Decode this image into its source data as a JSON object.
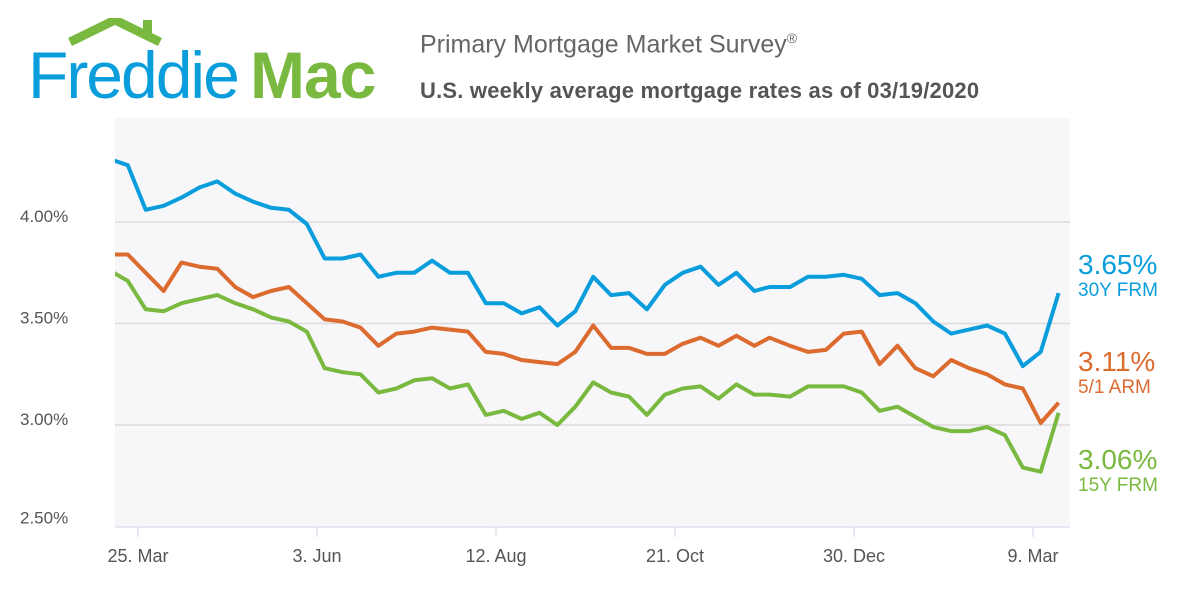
{
  "logo": {
    "text_part1": "Freddie",
    "text_part2": "Mac",
    "colors": {
      "blue": "#0a9ddc",
      "green": "#7ab940"
    }
  },
  "header": {
    "title": "Primary Mortgage Market Survey",
    "title_mark": "®",
    "subtitle": "U.S. weekly average mortgage rates as of 03/19/2020"
  },
  "chart_data": {
    "type": "line",
    "title": "Primary Mortgage Market Survey®",
    "subtitle": "U.S. weekly average mortgage rates as of 03/19/2020",
    "grid": true,
    "ylim": [
      2.5,
      4.5
    ],
    "y_ticks": [
      "2.50%",
      "3.00%",
      "3.50%",
      "4.00%"
    ],
    "y_tick_values": [
      2.5,
      3.0,
      3.5,
      4.0
    ],
    "x_ticks": [
      "25. Mar",
      "3. Jun",
      "12. Aug",
      "21. Oct",
      "30. Dec",
      "9. Mar"
    ],
    "x_tick_dates": [
      "2019-03-25",
      "2019-06-03",
      "2019-08-12",
      "2019-10-21",
      "2019-12-30",
      "2020-03-09"
    ],
    "x": [
      "2019-03-14",
      "2019-03-21",
      "2019-03-28",
      "2019-04-04",
      "2019-04-11",
      "2019-04-18",
      "2019-04-25",
      "2019-05-02",
      "2019-05-09",
      "2019-05-16",
      "2019-05-23",
      "2019-05-30",
      "2019-06-06",
      "2019-06-13",
      "2019-06-20",
      "2019-06-27",
      "2019-07-04",
      "2019-07-11",
      "2019-07-18",
      "2019-07-25",
      "2019-08-01",
      "2019-08-08",
      "2019-08-15",
      "2019-08-22",
      "2019-08-29",
      "2019-09-05",
      "2019-09-12",
      "2019-09-19",
      "2019-09-26",
      "2019-10-03",
      "2019-10-10",
      "2019-10-17",
      "2019-10-24",
      "2019-10-31",
      "2019-11-07",
      "2019-11-14",
      "2019-11-21",
      "2019-11-27",
      "2019-12-05",
      "2019-12-12",
      "2019-12-19",
      "2019-12-26",
      "2020-01-02",
      "2020-01-09",
      "2020-01-16",
      "2020-01-23",
      "2020-01-30",
      "2020-02-06",
      "2020-02-13",
      "2020-02-20",
      "2020-02-27",
      "2020-03-05",
      "2020-03-12",
      "2020-03-19"
    ],
    "series": [
      {
        "name": "30Y FRM",
        "latest": "3.65%",
        "color": "#0a9ddc",
        "values": [
          4.31,
          4.28,
          4.06,
          4.08,
          4.12,
          4.17,
          4.2,
          4.14,
          4.1,
          4.07,
          4.06,
          3.99,
          3.82,
          3.82,
          3.84,
          3.73,
          3.75,
          3.75,
          3.81,
          3.75,
          3.75,
          3.6,
          3.6,
          3.55,
          3.58,
          3.49,
          3.56,
          3.73,
          3.64,
          3.65,
          3.57,
          3.69,
          3.75,
          3.78,
          3.69,
          3.75,
          3.66,
          3.68,
          3.68,
          3.73,
          3.73,
          3.74,
          3.72,
          3.64,
          3.65,
          3.6,
          3.51,
          3.45,
          3.47,
          3.49,
          3.45,
          3.29,
          3.36,
          3.65
        ]
      },
      {
        "name": "5/1 ARM",
        "latest": "3.11%",
        "color": "#dc6b2f",
        "values": [
          3.84,
          3.84,
          3.75,
          3.66,
          3.8,
          3.78,
          3.77,
          3.68,
          3.63,
          3.66,
          3.68,
          3.6,
          3.52,
          3.51,
          3.48,
          3.39,
          3.45,
          3.46,
          3.48,
          3.47,
          3.46,
          3.36,
          3.35,
          3.32,
          3.31,
          3.3,
          3.36,
          3.49,
          3.38,
          3.38,
          3.35,
          3.35,
          3.4,
          3.43,
          3.39,
          3.44,
          3.39,
          3.43,
          3.39,
          3.36,
          3.37,
          3.45,
          3.46,
          3.3,
          3.39,
          3.28,
          3.24,
          3.32,
          3.28,
          3.25,
          3.2,
          3.18,
          3.01,
          3.11
        ]
      },
      {
        "name": "15Y FRM",
        "latest": "3.06%",
        "color": "#7ab940",
        "values": [
          3.76,
          3.71,
          3.57,
          3.56,
          3.6,
          3.62,
          3.64,
          3.6,
          3.57,
          3.53,
          3.51,
          3.46,
          3.28,
          3.26,
          3.25,
          3.16,
          3.18,
          3.22,
          3.23,
          3.18,
          3.2,
          3.05,
          3.07,
          3.03,
          3.06,
          3.0,
          3.09,
          3.21,
          3.16,
          3.14,
          3.05,
          3.15,
          3.18,
          3.19,
          3.13,
          3.2,
          3.15,
          3.15,
          3.14,
          3.19,
          3.19,
          3.19,
          3.16,
          3.07,
          3.09,
          3.04,
          2.99,
          2.97,
          2.97,
          2.99,
          2.95,
          2.79,
          2.77,
          3.06
        ]
      }
    ]
  }
}
